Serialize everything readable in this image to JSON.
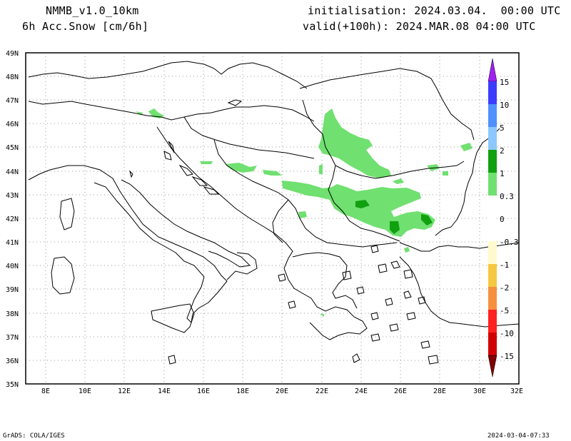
{
  "header": {
    "model": "NMMB_v1.0_10km",
    "variable": "6h Acc.Snow [cm/6h]",
    "initialisation": "initialisation: 2024.03.04.  00:00 UTC",
    "valid": "valid(+100h): 2024.MAR.08 04:00 UTC"
  },
  "footer": {
    "left": "GrADS: COLA/IGES",
    "right": "2024-03-04-07:33"
  },
  "map": {
    "lat_labels": [
      "49N",
      "48N",
      "47N",
      "46N",
      "45N",
      "44N",
      "43N",
      "42N",
      "41N",
      "40N",
      "39N",
      "38N",
      "37N",
      "36N",
      "35N"
    ],
    "lon_labels": [
      "8E",
      "10E",
      "12E",
      "14E",
      "16E",
      "18E",
      "20E",
      "22E",
      "24E",
      "26E",
      "28E",
      "30E",
      "32E"
    ],
    "lon_range": [
      7,
      32
    ],
    "lat_range": [
      35,
      49
    ],
    "grid": "dotted"
  },
  "colorbar": {
    "labels": [
      "15",
      "10",
      "5",
      "2",
      "1",
      "0.3",
      "0",
      "-0.3",
      "-1",
      "-2",
      "-5",
      "-10",
      "-15"
    ],
    "colors": [
      "#a020f0",
      "#3c3cff",
      "#5090ff",
      "#8cc8ff",
      "#10a010",
      "#70e070",
      "#ffffff",
      "#ffffff",
      "#fffacd",
      "#f5c842",
      "#f59040",
      "#ff2020",
      "#d00000",
      "#800000"
    ]
  },
  "snow_colors": {
    "light": "#70e070",
    "medium": "#10a010"
  }
}
